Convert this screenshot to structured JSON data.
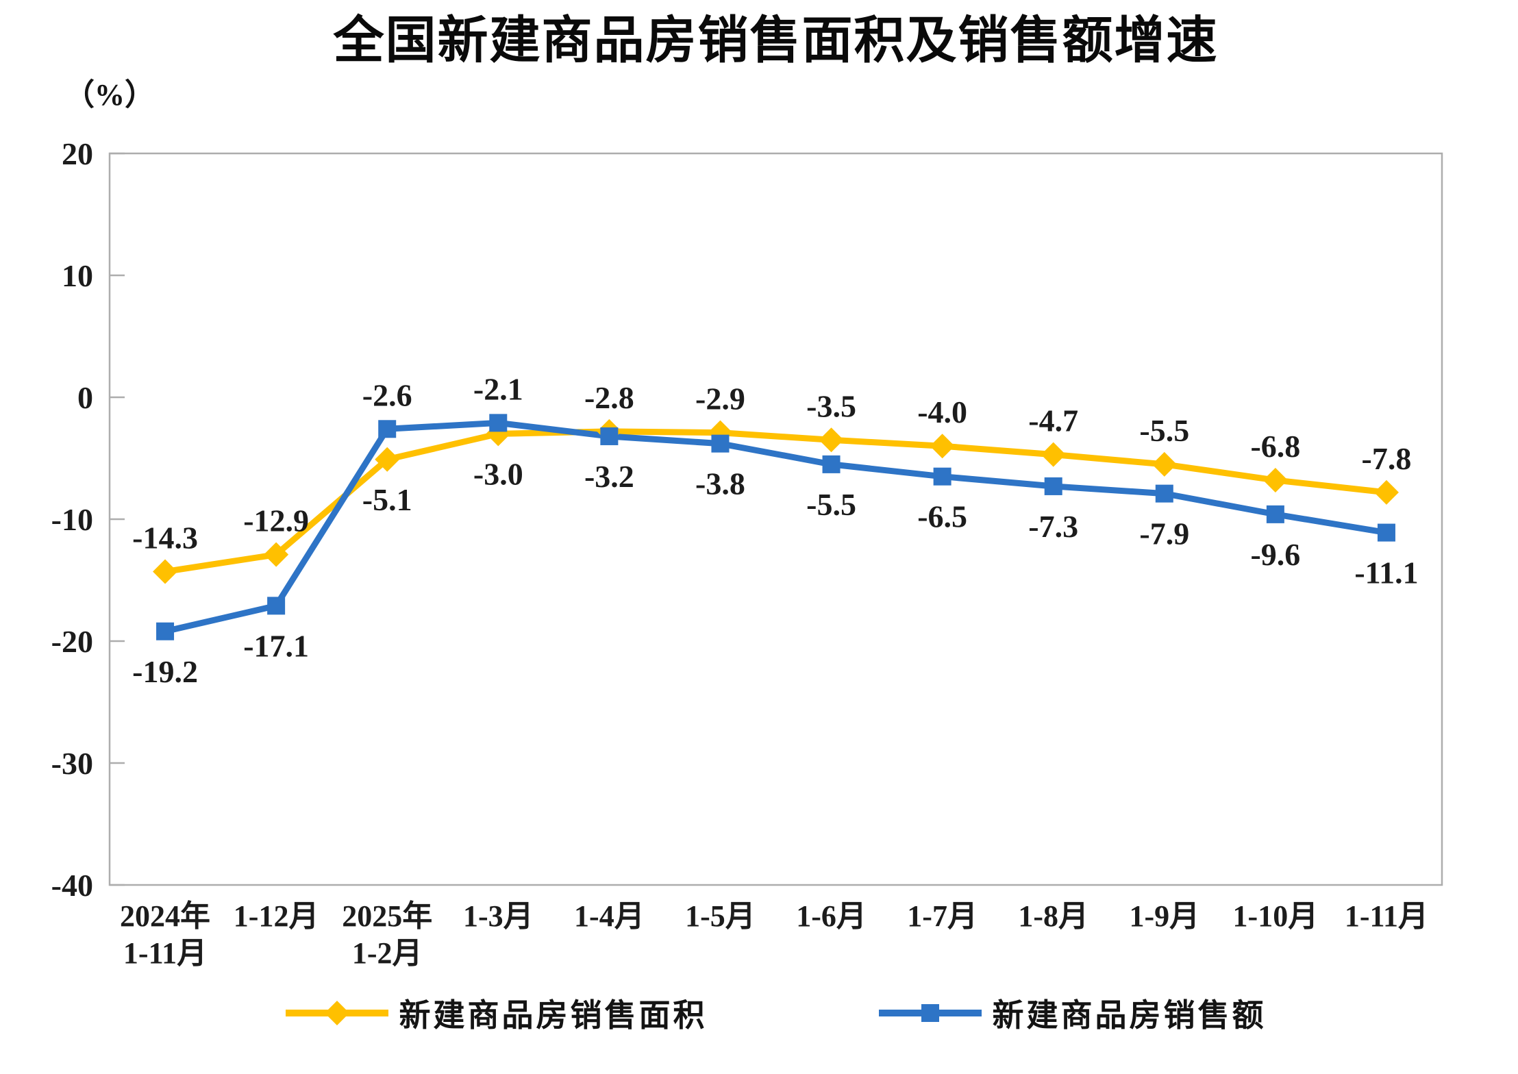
{
  "chart_data": {
    "type": "line",
    "title": "全国新建商品房销售面积及销售额增速",
    "y_unit_label": "（%）",
    "categories": [
      "2024年\n1-11月",
      "1-12月",
      "2025年\n1-2月",
      "1-3月",
      "1-4月",
      "1-5月",
      "1-6月",
      "1-7月",
      "1-8月",
      "1-9月",
      "1-10月",
      "1-11月"
    ],
    "ylim": [
      -40,
      20
    ],
    "yticks": [
      20,
      10,
      0,
      -10,
      -20,
      -30,
      -40
    ],
    "grid": false,
    "legend_position": "bottom",
    "frame_color": "#ADADAD",
    "label_color": "#1c1c1c",
    "series": [
      {
        "name": "新建商品房销售面积",
        "marker": "diamond",
        "color": "#FFC000",
        "values": [
          -14.3,
          -12.9,
          -5.1,
          -3.0,
          -2.8,
          -2.9,
          -3.5,
          -4.0,
          -4.7,
          -5.5,
          -6.8,
          -7.8
        ]
      },
      {
        "name": "新建商品房销售额",
        "marker": "square",
        "color": "#2E74C6",
        "values": [
          -19.2,
          -17.1,
          -2.6,
          -2.1,
          -3.2,
          -3.8,
          -5.5,
          -6.5,
          -7.3,
          -7.9,
          -9.6,
          -11.1
        ]
      }
    ]
  }
}
